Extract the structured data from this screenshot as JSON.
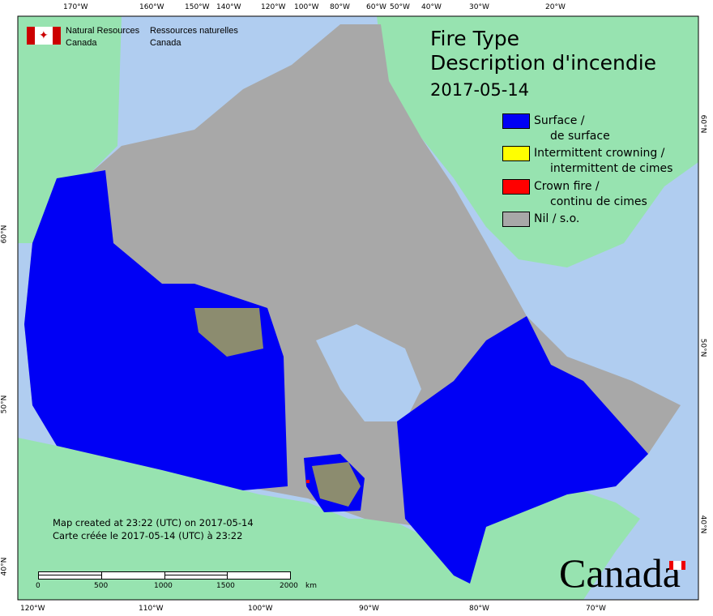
{
  "title": {
    "line1": "Fire Type",
    "line2": "Description d'incendie",
    "date": "2017-05-14"
  },
  "agency": {
    "en_line1": "Natural Resources",
    "en_line2": "Canada",
    "fr_line1": "Ressources naturelles",
    "fr_line2": "Canada"
  },
  "legend": [
    {
      "line1": "Surface /",
      "line2": "de surface",
      "color": "#0000f5"
    },
    {
      "line1": "Intermittent crowning /",
      "line2": "intermittent de cimes",
      "color": "#ffff00"
    },
    {
      "line1": "Crown fire /",
      "line2": "continu de cimes",
      "color": "#ff0000"
    },
    {
      "line1": "Nil / s.o.",
      "line2": "",
      "color": "#a8a8a8"
    }
  ],
  "note": {
    "en": "Map created at 23:22 (UTC) on 2017-05-14",
    "fr": "Carte créée le 2017-05-14 (UTC) à 23:22"
  },
  "scalebar": {
    "labels": [
      "0",
      "500",
      "1000",
      "1500",
      "2000"
    ],
    "unit": "km"
  },
  "wordmark": "Canada",
  "top_ticks": [
    "170°W",
    "160°W",
    "150°W",
    "140°W",
    "120°W",
    "100°W",
    "80°W",
    "60°W",
    "50°W",
    "40°W",
    "30°W",
    "20°W"
  ],
  "bottom_ticks": [
    "120°W",
    "110°W",
    "100°W",
    "90°W",
    "80°W",
    "70°W"
  ],
  "left_ticks": [
    "60°N",
    "50°N",
    "40°N"
  ],
  "right_ticks": [
    "60°N",
    "50°N",
    "40°N"
  ],
  "colors": {
    "ocean": "#b0cdf0",
    "foreign_land": "#97e3b0"
  }
}
